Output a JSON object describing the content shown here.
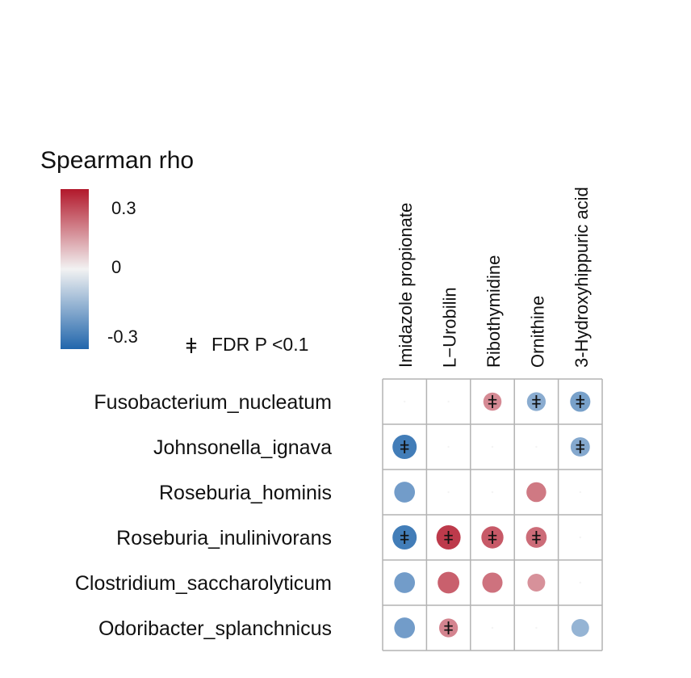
{
  "chart_data": {
    "type": "heatmap",
    "legend": {
      "title": "Spearman rho",
      "ticks": [
        "0.3",
        "0",
        "-0.3"
      ],
      "range": [
        -0.3,
        0.3
      ],
      "colors": {
        "high": "#b2182b",
        "mid": "#f2f2f2",
        "low": "#2166ac"
      }
    },
    "significance": {
      "marker": "ǂ",
      "label": "FDR P <0.1"
    },
    "columns": [
      "Imidazole propionate",
      "L−Urobilin",
      "Ribothymidine",
      "Ornithine",
      "3-Hydroxyhippuric acid"
    ],
    "rows": [
      "Fusobacterium_nucleatum",
      "Johnsonella_ignava",
      "Roseburia_hominis",
      "Roseburia_inulinivorans",
      "Clostridium_saccharolyticum",
      "Odoribacter_splanchnicus"
    ],
    "values": [
      [
        0.0,
        0.0,
        0.17,
        -0.18,
        -0.21
      ],
      [
        -0.33,
        0.0,
        0.0,
        0.0,
        -0.19
      ],
      [
        -0.22,
        0.0,
        0.0,
        0.2,
        0.0
      ],
      [
        -0.35,
        0.3,
        0.25,
        0.22,
        0.0
      ],
      [
        -0.22,
        0.24,
        0.21,
        0.16,
        0.0
      ],
      [
        -0.22,
        0.18,
        0.0,
        0.0,
        -0.16
      ]
    ],
    "significant": [
      [
        false,
        false,
        true,
        true,
        true
      ],
      [
        true,
        false,
        false,
        false,
        true
      ],
      [
        false,
        false,
        false,
        false,
        false
      ],
      [
        true,
        true,
        true,
        true,
        false
      ],
      [
        false,
        false,
        false,
        false,
        false
      ],
      [
        false,
        true,
        false,
        false,
        false
      ]
    ]
  }
}
